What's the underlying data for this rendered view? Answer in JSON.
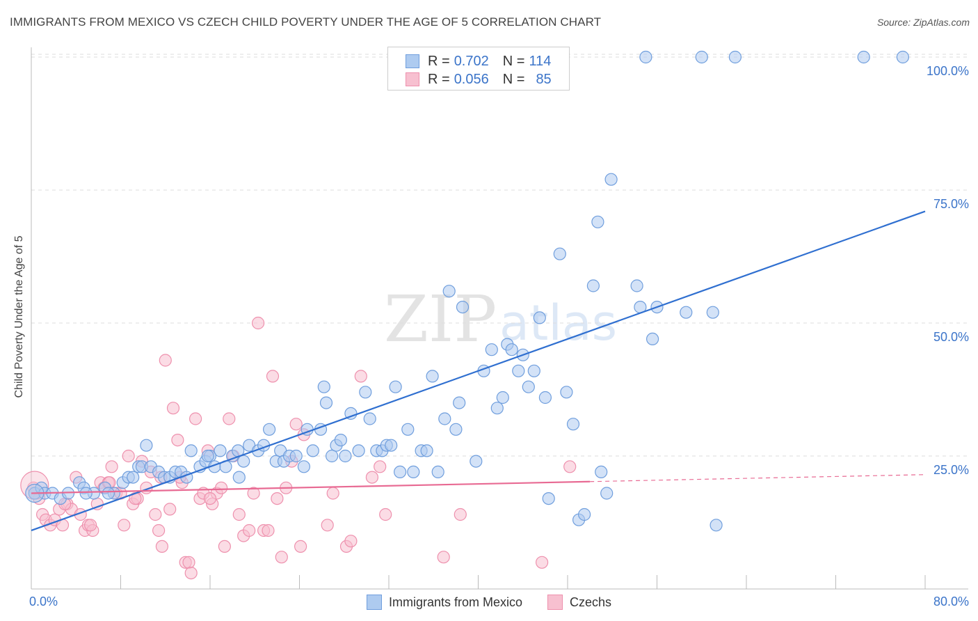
{
  "header": {
    "title": "IMMIGRANTS FROM MEXICO VS CZECH CHILD POVERTY UNDER THE AGE OF 5 CORRELATION CHART",
    "source": "Source: ZipAtlas.com"
  },
  "watermark": {
    "zip": "ZIP",
    "atlas": "atlas"
  },
  "colors": {
    "blue_fill": "#aecbf0",
    "blue_stroke": "#6f9edd",
    "blue_line": "#2f6fd0",
    "blue_text": "#3b74c9",
    "pink_fill": "#f7c0d0",
    "pink_stroke": "#ee90ad",
    "pink_line": "#e86a93",
    "grid": "#dddddd",
    "axis": "#bbbbbb"
  },
  "stats": [
    {
      "r_label": "R =",
      "r_value": "0.702",
      "n_label": "N =",
      "n_value": "114"
    },
    {
      "r_label": "R =",
      "r_value": "0.056",
      "n_label": "N =",
      "n_value": "85"
    }
  ],
  "chart_data": {
    "type": "scatter",
    "title": "IMMIGRANTS FROM MEXICO VS CZECH CHILD POVERTY UNDER THE AGE OF 5 CORRELATION CHART",
    "xlabel": "",
    "ylabel": "Child Poverty Under the Age of 5",
    "xlim": [
      0,
      80
    ],
    "ylim": [
      0,
      105
    ],
    "x_tick_labels": [
      {
        "value": 0,
        "label": "0.0%"
      },
      {
        "value": 80,
        "label": "80.0%"
      }
    ],
    "y_tick_labels": [
      {
        "value": 25,
        "label": "25.0%"
      },
      {
        "value": 50,
        "label": "50.0%"
      },
      {
        "value": 75,
        "label": "75.0%"
      },
      {
        "value": 100,
        "label": "100.0%"
      }
    ],
    "x_minor_ticks": [
      0,
      8,
      16,
      24,
      32,
      40,
      48,
      56,
      64,
      72,
      80
    ],
    "grid": true,
    "legend": [
      "Immigrants from Mexico",
      "Czechs"
    ],
    "series": [
      {
        "name": "Immigrants from Mexico",
        "color": "blue",
        "trend": {
          "x0": 0,
          "y0": 11,
          "x1": 80,
          "y1": 71,
          "dashed_from": null
        },
        "points": [
          [
            0.3,
            18
          ],
          [
            0.9,
            19
          ],
          [
            1.2,
            18
          ],
          [
            1.9,
            18
          ],
          [
            2.6,
            17
          ],
          [
            3.3,
            18
          ],
          [
            4.3,
            20
          ],
          [
            4.7,
            19
          ],
          [
            5.6,
            18
          ],
          [
            6.6,
            19
          ],
          [
            7.4,
            18
          ],
          [
            8.2,
            20
          ],
          [
            8.7,
            21
          ],
          [
            9.6,
            23
          ],
          [
            9.9,
            23
          ],
          [
            10.3,
            27
          ],
          [
            10.7,
            23
          ],
          [
            11.4,
            22
          ],
          [
            11.9,
            21
          ],
          [
            12.4,
            21
          ],
          [
            12.9,
            22
          ],
          [
            13.4,
            22
          ],
          [
            13.9,
            21
          ],
          [
            14.3,
            26
          ],
          [
            15.1,
            23
          ],
          [
            15.6,
            24
          ],
          [
            16.0,
            25
          ],
          [
            16.4,
            23
          ],
          [
            16.9,
            26
          ],
          [
            17.4,
            23
          ],
          [
            18.0,
            25
          ],
          [
            18.5,
            26
          ],
          [
            18.6,
            21
          ],
          [
            19.0,
            24
          ],
          [
            19.5,
            27
          ],
          [
            20.3,
            26
          ],
          [
            20.8,
            27
          ],
          [
            21.3,
            30
          ],
          [
            21.9,
            24
          ],
          [
            22.3,
            26
          ],
          [
            22.6,
            24
          ],
          [
            23.1,
            25
          ],
          [
            23.7,
            25
          ],
          [
            24.4,
            23
          ],
          [
            24.7,
            30
          ],
          [
            25.2,
            26
          ],
          [
            25.9,
            30
          ],
          [
            26.2,
            38
          ],
          [
            26.4,
            35
          ],
          [
            26.9,
            25
          ],
          [
            27.3,
            27
          ],
          [
            27.7,
            28
          ],
          [
            28.1,
            25
          ],
          [
            28.6,
            33
          ],
          [
            29.3,
            26
          ],
          [
            29.9,
            37
          ],
          [
            30.3,
            32
          ],
          [
            30.9,
            26
          ],
          [
            31.4,
            26
          ],
          [
            31.8,
            27
          ],
          [
            32.2,
            27
          ],
          [
            32.6,
            38
          ],
          [
            33.0,
            22
          ],
          [
            33.7,
            30
          ],
          [
            34.2,
            22
          ],
          [
            34.9,
            26
          ],
          [
            35.4,
            26
          ],
          [
            35.9,
            40
          ],
          [
            36.4,
            22
          ],
          [
            37.0,
            32
          ],
          [
            37.4,
            56
          ],
          [
            38.0,
            30
          ],
          [
            38.3,
            35
          ],
          [
            38.6,
            53
          ],
          [
            39.8,
            24
          ],
          [
            40.5,
            41
          ],
          [
            41.2,
            45
          ],
          [
            41.7,
            34
          ],
          [
            42.2,
            36
          ],
          [
            42.6,
            46
          ],
          [
            43.0,
            45
          ],
          [
            43.6,
            41
          ],
          [
            44.0,
            44
          ],
          [
            44.5,
            38
          ],
          [
            45.0,
            41
          ],
          [
            45.5,
            51
          ],
          [
            46.0,
            36
          ],
          [
            46.3,
            17
          ],
          [
            47.3,
            63
          ],
          [
            47.9,
            37
          ],
          [
            48.5,
            31
          ],
          [
            49.0,
            13
          ],
          [
            49.5,
            14
          ],
          [
            50.3,
            57
          ],
          [
            50.7,
            69
          ],
          [
            51.0,
            22
          ],
          [
            51.5,
            18
          ],
          [
            51.9,
            77
          ],
          [
            54.2,
            57
          ],
          [
            54.5,
            53
          ],
          [
            55.6,
            47
          ],
          [
            56.0,
            53
          ],
          [
            58.6,
            52
          ],
          [
            61.0,
            52
          ],
          [
            61.3,
            12
          ],
          [
            55.0,
            100
          ],
          [
            60.0,
            100
          ],
          [
            63.0,
            100
          ],
          [
            74.5,
            100
          ],
          [
            78.0,
            100
          ],
          [
            4.9,
            18
          ],
          [
            6.9,
            18
          ],
          [
            9.1,
            21
          ],
          [
            15.8,
            25
          ]
        ]
      },
      {
        "name": "Czechs",
        "color": "pink",
        "trend": {
          "x0": 0,
          "y0": 18,
          "x1": 80,
          "y1": 21.5,
          "dashed_from": 50
        },
        "points": [
          [
            0.2,
            19
          ],
          [
            0.7,
            17
          ],
          [
            1.0,
            14
          ],
          [
            1.3,
            13
          ],
          [
            1.7,
            12
          ],
          [
            2.1,
            13
          ],
          [
            2.5,
            15
          ],
          [
            2.8,
            12
          ],
          [
            3.2,
            16
          ],
          [
            3.6,
            15
          ],
          [
            4.0,
            21
          ],
          [
            4.4,
            14
          ],
          [
            4.8,
            11
          ],
          [
            5.1,
            12
          ],
          [
            5.5,
            11
          ],
          [
            5.9,
            16
          ],
          [
            6.2,
            20
          ],
          [
            6.5,
            19
          ],
          [
            6.9,
            20
          ],
          [
            7.2,
            23
          ],
          [
            7.6,
            18
          ],
          [
            8.0,
            18
          ],
          [
            8.3,
            12
          ],
          [
            8.7,
            25
          ],
          [
            9.1,
            16
          ],
          [
            9.5,
            17
          ],
          [
            9.9,
            24
          ],
          [
            10.3,
            19
          ],
          [
            10.7,
            22
          ],
          [
            11.1,
            14
          ],
          [
            11.4,
            11
          ],
          [
            11.7,
            8
          ],
          [
            12.0,
            43
          ],
          [
            12.4,
            15
          ],
          [
            12.7,
            34
          ],
          [
            13.1,
            28
          ],
          [
            13.5,
            20
          ],
          [
            13.8,
            5
          ],
          [
            14.1,
            5
          ],
          [
            14.3,
            3
          ],
          [
            14.7,
            32
          ],
          [
            15.1,
            17
          ],
          [
            15.4,
            18
          ],
          [
            15.8,
            26
          ],
          [
            16.2,
            16
          ],
          [
            16.6,
            18
          ],
          [
            17.0,
            19
          ],
          [
            17.3,
            8
          ],
          [
            17.7,
            32
          ],
          [
            18.1,
            25
          ],
          [
            18.6,
            14
          ],
          [
            19.0,
            10
          ],
          [
            19.5,
            11
          ],
          [
            19.9,
            18
          ],
          [
            20.3,
            50
          ],
          [
            20.8,
            11
          ],
          [
            21.2,
            11
          ],
          [
            21.6,
            40
          ],
          [
            22.0,
            17
          ],
          [
            22.4,
            6
          ],
          [
            22.8,
            19
          ],
          [
            23.3,
            24
          ],
          [
            23.7,
            31
          ],
          [
            24.1,
            8
          ],
          [
            24.4,
            29
          ],
          [
            26.5,
            12
          ],
          [
            27.0,
            18
          ],
          [
            28.2,
            8
          ],
          [
            28.6,
            9
          ],
          [
            29.5,
            40
          ],
          [
            30.5,
            21
          ],
          [
            31.2,
            23
          ],
          [
            31.7,
            14
          ],
          [
            36.9,
            6
          ],
          [
            38.4,
            14
          ],
          [
            45.7,
            5
          ],
          [
            48.2,
            23
          ],
          [
            0.3,
            18
          ],
          [
            3.0,
            16
          ],
          [
            5.3,
            12
          ],
          [
            7.0,
            20
          ],
          [
            9.3,
            17
          ],
          [
            11.6,
            21
          ],
          [
            13.3,
            21
          ],
          [
            16.0,
            17
          ]
        ]
      }
    ]
  }
}
